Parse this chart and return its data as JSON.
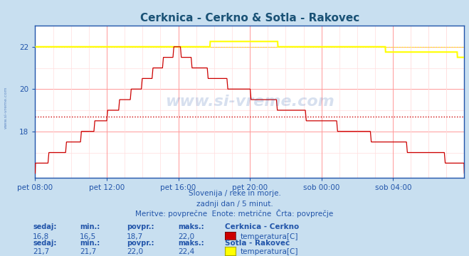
{
  "title": "Cerknica - Cerkno & Sotla - Rakovec",
  "title_color": "#1a5276",
  "background_color": "#c8dff0",
  "plot_bg_color": "#ffffff",
  "grid_color_major": "#ff9999",
  "grid_color_minor": "#ffdddd",
  "xlabel_ticks": [
    "pet 08:00",
    "pet 12:00",
    "pet 16:00",
    "pet 20:00",
    "sob 00:00",
    "sob 04:00"
  ],
  "xlabel_tick_positions": [
    0,
    240,
    480,
    720,
    960,
    1200
  ],
  "total_points": 1440,
  "ylim_min": 15.8,
  "ylim_max": 23.0,
  "yticks": [
    18,
    20,
    22
  ],
  "avg_line1": 18.7,
  "avg_line2": 22.0,
  "series1_color": "#cc0000",
  "series2_color": "#ffff00",
  "series2_edge_color": "#aaaa00",
  "axis_color": "#2255aa",
  "text_color": "#2255aa",
  "watermark_color": "#2255aa",
  "subtitle1": "Slovenija / reke in morje.",
  "subtitle2": "zadnji dan / 5 minut.",
  "subtitle3": "Meritve: povprečne  Enote: metrične  Črta: povprečje",
  "leg1_title": "Cerknica - Cerkno",
  "leg1_v1": "16,8",
  "leg1_v2": "16,5",
  "leg1_v3": "18,7",
  "leg1_v4": "22,0",
  "leg1_type": "temperatura[C]",
  "leg2_title": "Sotla - Rakovec",
  "leg2_v1": "21,7",
  "leg2_v2": "21,7",
  "leg2_v3": "22,0",
  "leg2_v4": "22,4",
  "leg2_type": "temperatura[C]"
}
